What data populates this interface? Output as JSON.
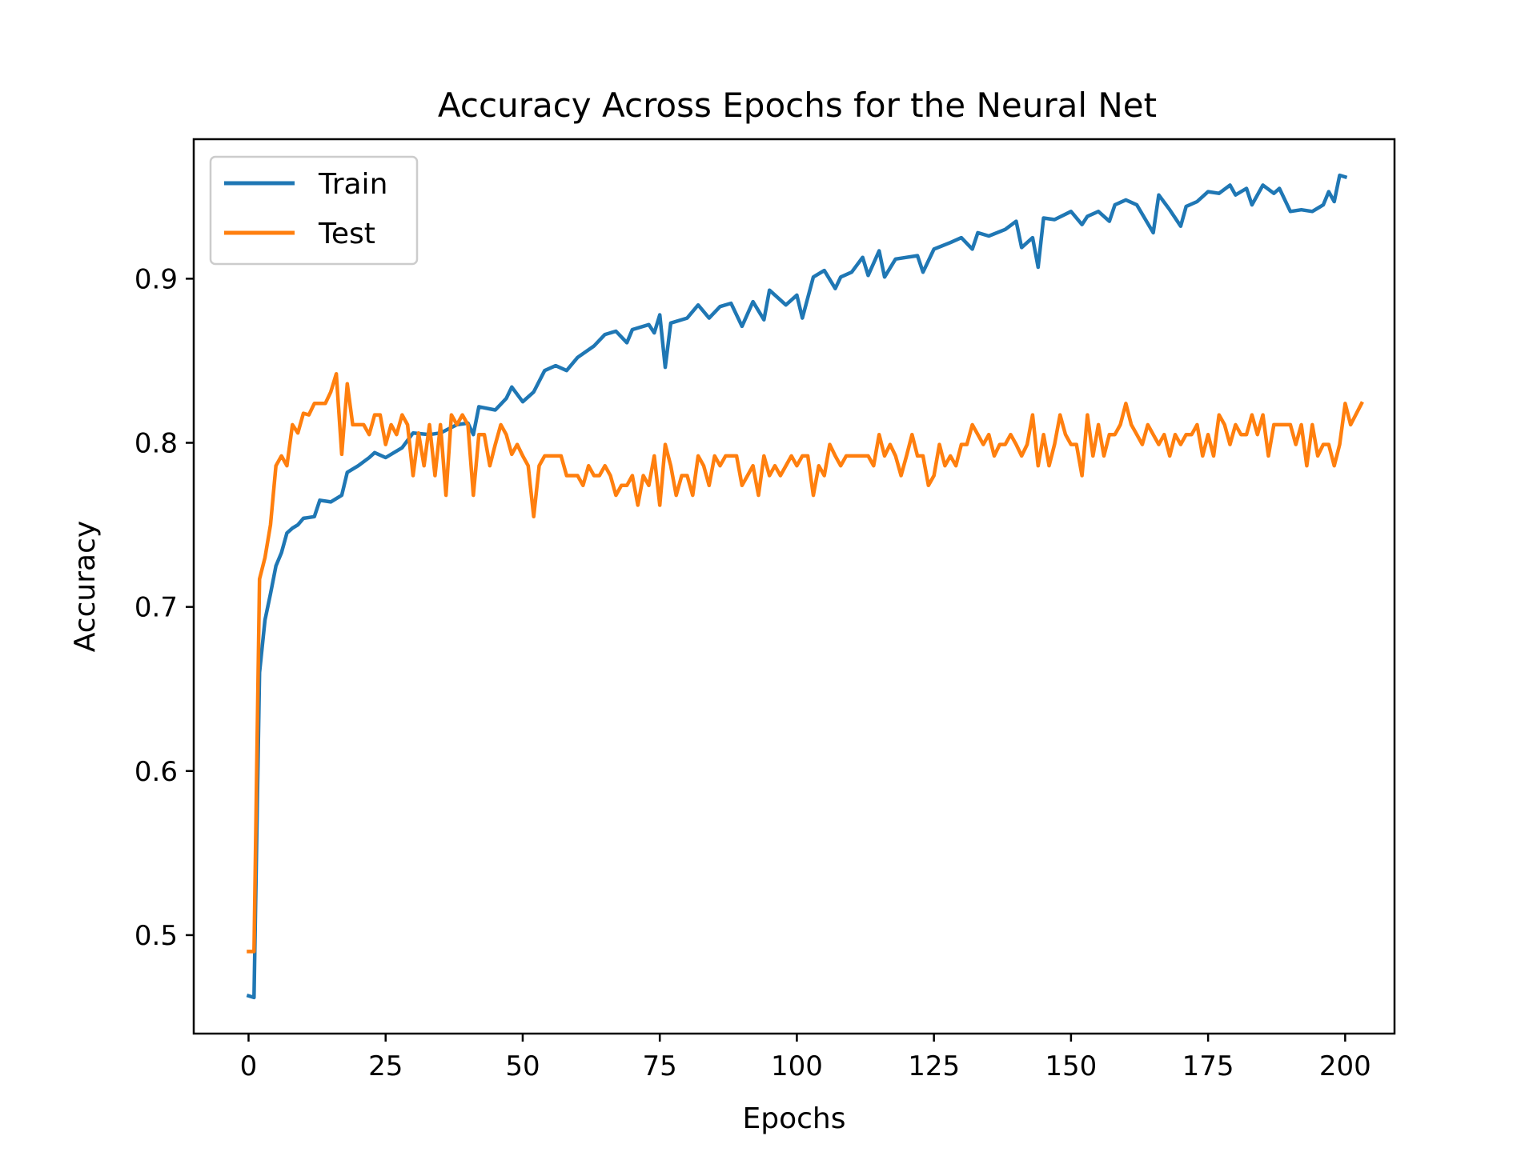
{
  "chart_data": {
    "type": "line",
    "title": "Accuracy Across Epochs for the Neural Net",
    "xlabel": "Epochs",
    "ylabel": "Accuracy",
    "xlim": [
      -10,
      209
    ],
    "ylim": [
      0.44,
      0.985
    ],
    "xticks": [
      0,
      25,
      50,
      75,
      100,
      125,
      150,
      175,
      200
    ],
    "yticks": [
      0.5,
      0.6,
      0.7,
      0.8,
      0.9
    ],
    "grid": false,
    "legend_position": "top-left",
    "series": [
      {
        "name": "Train",
        "color": "#1f77b4",
        "keypoints": [
          [
            0,
            0.463
          ],
          [
            1,
            0.462
          ],
          [
            2,
            0.66
          ],
          [
            3,
            0.692
          ],
          [
            4,
            0.708
          ],
          [
            5,
            0.725
          ],
          [
            6,
            0.733
          ],
          [
            7,
            0.745
          ],
          [
            8,
            0.748
          ],
          [
            9,
            0.75
          ],
          [
            10,
            0.754
          ],
          [
            12,
            0.755
          ],
          [
            13,
            0.765
          ],
          [
            15,
            0.764
          ],
          [
            17,
            0.768
          ],
          [
            18,
            0.782
          ],
          [
            20,
            0.786
          ],
          [
            22,
            0.791
          ],
          [
            23,
            0.794
          ],
          [
            25,
            0.791
          ],
          [
            28,
            0.797
          ],
          [
            30,
            0.806
          ],
          [
            33,
            0.805
          ],
          [
            35,
            0.806
          ],
          [
            38,
            0.811
          ],
          [
            40,
            0.812
          ],
          [
            41,
            0.805
          ],
          [
            42,
            0.822
          ],
          [
            45,
            0.82
          ],
          [
            47,
            0.827
          ],
          [
            48,
            0.834
          ],
          [
            50,
            0.825
          ],
          [
            52,
            0.831
          ],
          [
            54,
            0.844
          ],
          [
            56,
            0.847
          ],
          [
            58,
            0.844
          ],
          [
            60,
            0.852
          ],
          [
            63,
            0.859
          ],
          [
            65,
            0.866
          ],
          [
            67,
            0.868
          ],
          [
            69,
            0.861
          ],
          [
            70,
            0.869
          ],
          [
            73,
            0.872
          ],
          [
            74,
            0.867
          ],
          [
            75,
            0.878
          ],
          [
            76,
            0.846
          ],
          [
            77,
            0.873
          ],
          [
            80,
            0.876
          ],
          [
            82,
            0.884
          ],
          [
            84,
            0.876
          ],
          [
            86,
            0.883
          ],
          [
            88,
            0.885
          ],
          [
            90,
            0.871
          ],
          [
            92,
            0.886
          ],
          [
            94,
            0.875
          ],
          [
            95,
            0.893
          ],
          [
            98,
            0.884
          ],
          [
            100,
            0.89
          ],
          [
            101,
            0.876
          ],
          [
            103,
            0.901
          ],
          [
            105,
            0.905
          ],
          [
            107,
            0.894
          ],
          [
            108,
            0.901
          ],
          [
            110,
            0.904
          ],
          [
            112,
            0.913
          ],
          [
            113,
            0.902
          ],
          [
            115,
            0.917
          ],
          [
            116,
            0.901
          ],
          [
            118,
            0.912
          ],
          [
            120,
            0.913
          ],
          [
            122,
            0.914
          ],
          [
            123,
            0.904
          ],
          [
            125,
            0.918
          ],
          [
            128,
            0.922
          ],
          [
            130,
            0.925
          ],
          [
            132,
            0.918
          ],
          [
            133,
            0.928
          ],
          [
            135,
            0.926
          ],
          [
            138,
            0.93
          ],
          [
            140,
            0.935
          ],
          [
            141,
            0.919
          ],
          [
            143,
            0.925
          ],
          [
            144,
            0.907
          ],
          [
            145,
            0.937
          ],
          [
            147,
            0.936
          ],
          [
            150,
            0.941
          ],
          [
            152,
            0.933
          ],
          [
            153,
            0.938
          ],
          [
            155,
            0.941
          ],
          [
            157,
            0.935
          ],
          [
            158,
            0.945
          ],
          [
            160,
            0.948
          ],
          [
            162,
            0.945
          ],
          [
            165,
            0.928
          ],
          [
            166,
            0.951
          ],
          [
            168,
            0.942
          ],
          [
            170,
            0.932
          ],
          [
            171,
            0.944
          ],
          [
            173,
            0.947
          ],
          [
            175,
            0.953
          ],
          [
            177,
            0.952
          ],
          [
            179,
            0.957
          ],
          [
            180,
            0.951
          ],
          [
            182,
            0.955
          ],
          [
            183,
            0.945
          ],
          [
            185,
            0.957
          ],
          [
            187,
            0.952
          ],
          [
            188,
            0.955
          ],
          [
            190,
            0.941
          ],
          [
            192,
            0.942
          ],
          [
            194,
            0.941
          ],
          [
            196,
            0.945
          ],
          [
            197,
            0.953
          ],
          [
            198,
            0.947
          ],
          [
            199,
            0.963
          ],
          [
            200,
            0.962
          ]
        ]
      },
      {
        "name": "Test",
        "color": "#ff7f0e",
        "keypoints": [
          [
            0,
            0.49
          ],
          [
            1,
            0.49
          ],
          [
            2,
            0.717
          ],
          [
            3,
            0.73
          ],
          [
            4,
            0.75
          ],
          [
            5,
            0.786
          ],
          [
            6,
            0.792
          ],
          [
            7,
            0.786
          ],
          [
            8,
            0.811
          ],
          [
            9,
            0.806
          ],
          [
            10,
            0.818
          ],
          [
            11,
            0.817
          ],
          [
            12,
            0.824
          ],
          [
            14,
            0.824
          ],
          [
            15,
            0.831
          ],
          [
            16,
            0.842
          ],
          [
            17,
            0.793
          ],
          [
            18,
            0.836
          ],
          [
            19,
            0.811
          ],
          [
            21,
            0.811
          ],
          [
            22,
            0.805
          ],
          [
            23,
            0.817
          ],
          [
            24,
            0.817
          ],
          [
            25,
            0.799
          ],
          [
            26,
            0.811
          ],
          [
            27,
            0.805
          ],
          [
            28,
            0.817
          ],
          [
            29,
            0.811
          ],
          [
            30,
            0.78
          ],
          [
            31,
            0.806
          ],
          [
            32,
            0.786
          ],
          [
            33,
            0.811
          ],
          [
            34,
            0.78
          ],
          [
            35,
            0.811
          ],
          [
            36,
            0.768
          ],
          [
            37,
            0.817
          ],
          [
            38,
            0.811
          ],
          [
            39,
            0.817
          ],
          [
            40,
            0.811
          ],
          [
            41,
            0.768
          ],
          [
            42,
            0.805
          ],
          [
            43,
            0.805
          ],
          [
            44,
            0.786
          ],
          [
            45,
            0.799
          ],
          [
            46,
            0.811
          ],
          [
            47,
            0.805
          ],
          [
            48,
            0.793
          ],
          [
            49,
            0.799
          ],
          [
            50,
            0.792
          ],
          [
            51,
            0.786
          ],
          [
            52,
            0.755
          ],
          [
            53,
            0.786
          ],
          [
            54,
            0.792
          ],
          [
            57,
            0.792
          ],
          [
            58,
            0.78
          ],
          [
            60,
            0.78
          ],
          [
            61,
            0.774
          ],
          [
            62,
            0.786
          ],
          [
            63,
            0.78
          ],
          [
            64,
            0.78
          ],
          [
            65,
            0.786
          ],
          [
            66,
            0.78
          ],
          [
            67,
            0.768
          ],
          [
            68,
            0.774
          ],
          [
            69,
            0.774
          ],
          [
            70,
            0.78
          ],
          [
            71,
            0.762
          ],
          [
            72,
            0.78
          ],
          [
            73,
            0.774
          ],
          [
            74,
            0.792
          ],
          [
            75,
            0.762
          ],
          [
            76,
            0.799
          ],
          [
            77,
            0.786
          ],
          [
            78,
            0.768
          ],
          [
            79,
            0.78
          ],
          [
            80,
            0.78
          ],
          [
            81,
            0.768
          ],
          [
            82,
            0.792
          ],
          [
            83,
            0.786
          ],
          [
            84,
            0.774
          ],
          [
            85,
            0.792
          ],
          [
            86,
            0.786
          ],
          [
            87,
            0.792
          ],
          [
            89,
            0.792
          ],
          [
            90,
            0.774
          ],
          [
            91,
            0.78
          ],
          [
            92,
            0.786
          ],
          [
            93,
            0.768
          ],
          [
            94,
            0.792
          ],
          [
            95,
            0.78
          ],
          [
            96,
            0.786
          ],
          [
            97,
            0.78
          ],
          [
            99,
            0.792
          ],
          [
            100,
            0.786
          ],
          [
            101,
            0.792
          ],
          [
            102,
            0.792
          ],
          [
            103,
            0.768
          ],
          [
            104,
            0.786
          ],
          [
            105,
            0.78
          ],
          [
            106,
            0.799
          ],
          [
            107,
            0.792
          ],
          [
            108,
            0.786
          ],
          [
            109,
            0.792
          ],
          [
            113,
            0.792
          ],
          [
            114,
            0.786
          ],
          [
            115,
            0.805
          ],
          [
            116,
            0.792
          ],
          [
            117,
            0.799
          ],
          [
            118,
            0.792
          ],
          [
            119,
            0.78
          ],
          [
            120,
            0.792
          ],
          [
            121,
            0.805
          ],
          [
            122,
            0.792
          ],
          [
            123,
            0.792
          ],
          [
            124,
            0.774
          ],
          [
            125,
            0.78
          ],
          [
            126,
            0.799
          ],
          [
            127,
            0.786
          ],
          [
            128,
            0.792
          ],
          [
            129,
            0.786
          ],
          [
            130,
            0.799
          ],
          [
            131,
            0.799
          ],
          [
            132,
            0.811
          ],
          [
            133,
            0.805
          ],
          [
            134,
            0.799
          ],
          [
            135,
            0.805
          ],
          [
            136,
            0.792
          ],
          [
            137,
            0.799
          ],
          [
            138,
            0.799
          ],
          [
            139,
            0.805
          ],
          [
            140,
            0.799
          ],
          [
            141,
            0.792
          ],
          [
            142,
            0.799
          ],
          [
            143,
            0.817
          ],
          [
            144,
            0.786
          ],
          [
            145,
            0.805
          ],
          [
            146,
            0.786
          ],
          [
            147,
            0.799
          ],
          [
            148,
            0.817
          ],
          [
            149,
            0.805
          ],
          [
            150,
            0.799
          ],
          [
            151,
            0.799
          ],
          [
            152,
            0.78
          ],
          [
            153,
            0.817
          ],
          [
            154,
            0.792
          ],
          [
            155,
            0.811
          ],
          [
            156,
            0.792
          ],
          [
            157,
            0.805
          ],
          [
            158,
            0.805
          ],
          [
            159,
            0.811
          ],
          [
            160,
            0.824
          ],
          [
            161,
            0.811
          ],
          [
            162,
            0.805
          ],
          [
            163,
            0.799
          ],
          [
            164,
            0.811
          ],
          [
            165,
            0.805
          ],
          [
            166,
            0.799
          ],
          [
            167,
            0.805
          ],
          [
            168,
            0.792
          ],
          [
            169,
            0.805
          ],
          [
            170,
            0.799
          ],
          [
            171,
            0.805
          ],
          [
            172,
            0.805
          ],
          [
            173,
            0.811
          ],
          [
            174,
            0.792
          ],
          [
            175,
            0.805
          ],
          [
            176,
            0.792
          ],
          [
            177,
            0.817
          ],
          [
            178,
            0.811
          ],
          [
            179,
            0.799
          ],
          [
            180,
            0.811
          ],
          [
            181,
            0.805
          ],
          [
            182,
            0.805
          ],
          [
            183,
            0.817
          ],
          [
            184,
            0.805
          ],
          [
            185,
            0.817
          ],
          [
            186,
            0.792
          ],
          [
            187,
            0.811
          ],
          [
            190,
            0.811
          ],
          [
            191,
            0.799
          ],
          [
            192,
            0.811
          ],
          [
            193,
            0.786
          ],
          [
            194,
            0.811
          ],
          [
            195,
            0.792
          ],
          [
            196,
            0.799
          ],
          [
            197,
            0.799
          ],
          [
            198,
            0.786
          ],
          [
            199,
            0.799
          ],
          [
            200,
            0.824
          ],
          [
            201,
            0.811
          ],
          [
            203,
            0.824
          ]
        ]
      }
    ]
  }
}
